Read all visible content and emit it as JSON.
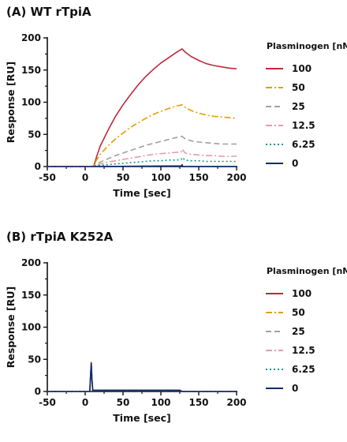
{
  "chart_data": [
    {
      "type": "line",
      "panel_title": "(A) WT rTpiA",
      "xlabel": "Time [sec]",
      "ylabel": "Response [RU]",
      "xlim": [
        -50,
        200
      ],
      "ylim": [
        0,
        200
      ],
      "xticks": [
        -50,
        0,
        50,
        100,
        150,
        200
      ],
      "yticks": [
        0,
        50,
        100,
        150,
        200
      ],
      "grid": false,
      "legend_title": "Plasminogen [nM]",
      "legend_position": "right",
      "series": [
        {
          "name": "100",
          "color": "#c0283a",
          "dash": "solid",
          "x": [
            -50,
            10,
            12,
            15,
            20,
            30,
            40,
            50,
            60,
            70,
            80,
            90,
            100,
            110,
            120,
            128,
            132,
            140,
            150,
            160,
            170,
            180,
            190,
            200
          ],
          "y": [
            0,
            0,
            3,
            15,
            32,
            56,
            78,
            96,
            112,
            127,
            140,
            151,
            161,
            169,
            177,
            183,
            178,
            171,
            165,
            160,
            157,
            155,
            153,
            152
          ]
        },
        {
          "name": "50",
          "color": "#e0a000",
          "dash": "dashdot",
          "x": [
            -50,
            10,
            12,
            15,
            20,
            30,
            40,
            50,
            60,
            70,
            80,
            90,
            100,
            110,
            120,
            128,
            132,
            140,
            150,
            160,
            170,
            180,
            190,
            200
          ],
          "y": [
            0,
            0,
            3,
            10,
            19,
            32,
            43,
            52,
            61,
            68,
            75,
            81,
            86,
            90,
            94,
            96,
            92,
            87,
            83,
            80,
            78,
            77,
            76,
            75
          ]
        },
        {
          "name": "25",
          "color": "#a0a0a0",
          "dash": "dash",
          "x": [
            -50,
            10,
            12,
            15,
            20,
            30,
            40,
            50,
            60,
            70,
            80,
            90,
            100,
            110,
            120,
            128,
            132,
            140,
            150,
            160,
            170,
            180,
            190,
            200
          ],
          "y": [
            0,
            0,
            1,
            4,
            7,
            12,
            17,
            21,
            25,
            29,
            33,
            36,
            39,
            42,
            45,
            47,
            43,
            40,
            38,
            37,
            36,
            35,
            35,
            35
          ]
        },
        {
          "name": "12.5",
          "color": "#e79aac",
          "dash": "dashdot",
          "x": [
            -50,
            10,
            12,
            15,
            20,
            30,
            40,
            50,
            60,
            70,
            80,
            90,
            100,
            110,
            120,
            127,
            128,
            132,
            140,
            150,
            160,
            170,
            180,
            190,
            200
          ],
          "y": [
            0,
            0,
            1,
            2,
            4,
            7,
            9,
            11,
            13,
            15,
            17,
            19,
            20,
            21,
            22,
            23,
            27,
            21,
            19,
            18,
            17,
            17,
            16,
            16,
            16
          ]
        },
        {
          "name": "6.25",
          "color": "#0f9a86",
          "dash": "dot",
          "x": [
            -50,
            10,
            12,
            15,
            20,
            30,
            40,
            50,
            60,
            70,
            80,
            90,
            100,
            110,
            120,
            127,
            128,
            132,
            140,
            150,
            160,
            170,
            180,
            190,
            200
          ],
          "y": [
            0,
            0,
            1,
            1,
            2,
            3,
            4,
            5,
            6,
            7,
            8,
            9,
            9,
            10,
            10,
            11,
            14,
            10,
            9,
            9,
            8,
            8,
            8,
            8,
            8
          ]
        },
        {
          "name": "0",
          "color": "#0d2a6e",
          "dash": "solid",
          "x": [
            -50,
            10,
            127,
            128,
            129,
            200
          ],
          "y": [
            0,
            0,
            1,
            3,
            0,
            0
          ]
        }
      ]
    },
    {
      "type": "line",
      "panel_title": "(B) rTpiA K252A",
      "xlabel": "Time [sec]",
      "ylabel": "Response [RU]",
      "xlim": [
        -50,
        200
      ],
      "ylim": [
        0,
        200
      ],
      "xticks": [
        -50,
        0,
        50,
        100,
        150,
        200
      ],
      "yticks": [
        0,
        50,
        100,
        150,
        200
      ],
      "grid": false,
      "legend_title": "Plasminogen [nM]",
      "legend_position": "right",
      "series": [
        {
          "name": "100",
          "color": "#c0283a",
          "dash": "solid",
          "x": [
            -50,
            6,
            8,
            9,
            10,
            12,
            20,
            125,
            128,
            200
          ],
          "y": [
            0,
            0,
            45,
            20,
            2,
            2,
            2,
            2,
            0,
            0
          ]
        },
        {
          "name": "50",
          "color": "#e0a000",
          "dash": "dashdot",
          "x": [
            -50,
            6,
            8,
            9,
            10,
            12,
            20,
            125,
            128,
            200
          ],
          "y": [
            0,
            0,
            44,
            18,
            2,
            2,
            2,
            2,
            0,
            0
          ]
        },
        {
          "name": "25",
          "color": "#a0a0a0",
          "dash": "dash",
          "x": [
            -50,
            6,
            8,
            9,
            10,
            12,
            20,
            125,
            128,
            200
          ],
          "y": [
            0,
            0,
            43,
            18,
            2,
            2,
            2,
            2,
            0,
            0
          ]
        },
        {
          "name": "12.5",
          "color": "#e79aac",
          "dash": "dashdot",
          "x": [
            -50,
            6,
            8,
            9,
            10,
            12,
            20,
            125,
            128,
            200
          ],
          "y": [
            0,
            0,
            42,
            17,
            2,
            2,
            2,
            2,
            0,
            0
          ]
        },
        {
          "name": "6.25",
          "color": "#0f9a86",
          "dash": "dot",
          "x": [
            -50,
            6,
            8,
            9,
            10,
            12,
            20,
            125,
            128,
            200
          ],
          "y": [
            0,
            0,
            42,
            17,
            2,
            2,
            2,
            2,
            0,
            0
          ]
        },
        {
          "name": "0",
          "color": "#0d2a6e",
          "dash": "solid",
          "x": [
            -50,
            6,
            8,
            9,
            10,
            12,
            20,
            125,
            128,
            200
          ],
          "y": [
            0,
            0,
            44,
            18,
            2,
            2,
            2,
            2,
            0,
            0
          ]
        }
      ]
    }
  ]
}
